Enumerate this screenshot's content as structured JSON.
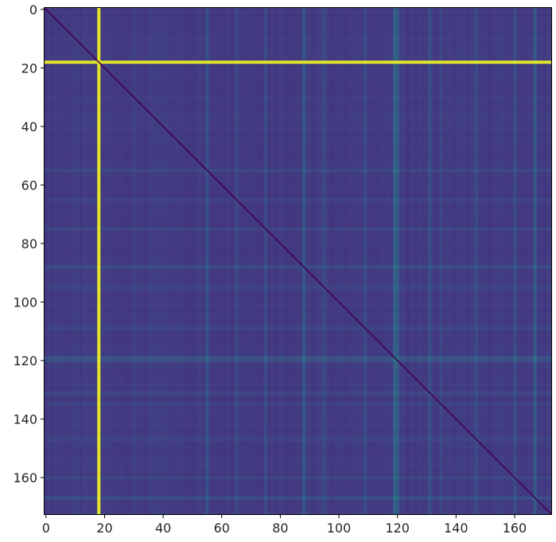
{
  "chart_data": {
    "type": "heatmap",
    "title": "",
    "xlabel": "",
    "ylabel": "",
    "matrix_size": 173,
    "xlim": [
      -0.5,
      172.5
    ],
    "ylim": [
      172.5,
      -0.5
    ],
    "y_axis_direction": "top-to-bottom",
    "colormap": "viridis",
    "colorbar": false,
    "grid": false,
    "x_ticks": [
      0,
      20,
      40,
      60,
      80,
      100,
      120,
      140,
      160
    ],
    "y_ticks": [
      0,
      20,
      40,
      60,
      80,
      100,
      120,
      140,
      160
    ],
    "x_tick_labels": [
      "0",
      "20",
      "40",
      "60",
      "80",
      "100",
      "120",
      "140",
      "160"
    ],
    "y_tick_labels": [
      "0",
      "20",
      "40",
      "60",
      "80",
      "100",
      "120",
      "140",
      "160"
    ],
    "diagonal_value": 0.0,
    "value_range": [
      0.0,
      1.0
    ],
    "background_distance": 0.22,
    "high_distance_rows": [
      {
        "index": 18,
        "value": 0.97
      },
      {
        "index": 119,
        "value": 0.58
      },
      {
        "index": 120,
        "value": 0.55
      },
      {
        "index": 88,
        "value": 0.5
      },
      {
        "index": 167,
        "value": 0.52
      },
      {
        "index": 55,
        "value": 0.42
      },
      {
        "index": 131,
        "value": 0.4
      },
      {
        "index": 75,
        "value": 0.38
      },
      {
        "index": 65,
        "value": 0.36
      },
      {
        "index": 147,
        "value": 0.36
      },
      {
        "index": 160,
        "value": 0.38
      },
      {
        "index": 109,
        "value": 0.36
      },
      {
        "index": 95,
        "value": 0.34
      },
      {
        "index": 135,
        "value": 0.33
      }
    ]
  }
}
